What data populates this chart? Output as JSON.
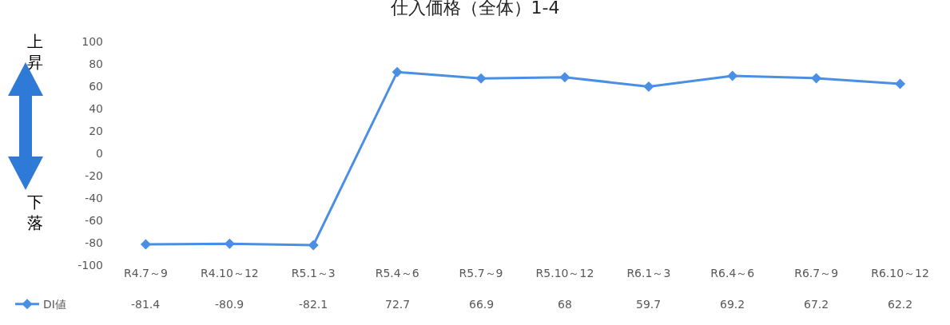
{
  "chart_data": {
    "type": "line",
    "title": "仕入価格（全体）1-4",
    "categories": [
      "R4.7～9",
      "R4.10～12",
      "R5.1～3",
      "R5.4～6",
      "R5.7～9",
      "R5.10～12",
      "R6.1～3",
      "R6.4～6",
      "R6.7～9",
      "R6.10～12"
    ],
    "series": [
      {
        "name": "DI値",
        "color": "#4a8fe3",
        "values": [
          -81.4,
          -80.9,
          -82.1,
          72.7,
          66.9,
          68,
          59.7,
          69.2,
          67.2,
          62.2
        ]
      }
    ],
    "ylim": [
      -100,
      100
    ],
    "yticks": [
      -100,
      -80,
      -60,
      -40,
      -20,
      0,
      20,
      40,
      60,
      80,
      100
    ],
    "grid": false,
    "legend": "bottom left",
    "marker": "diamond",
    "line_style": "solid",
    "data_labels": true,
    "annotations": [
      "上昇",
      "下落"
    ]
  }
}
